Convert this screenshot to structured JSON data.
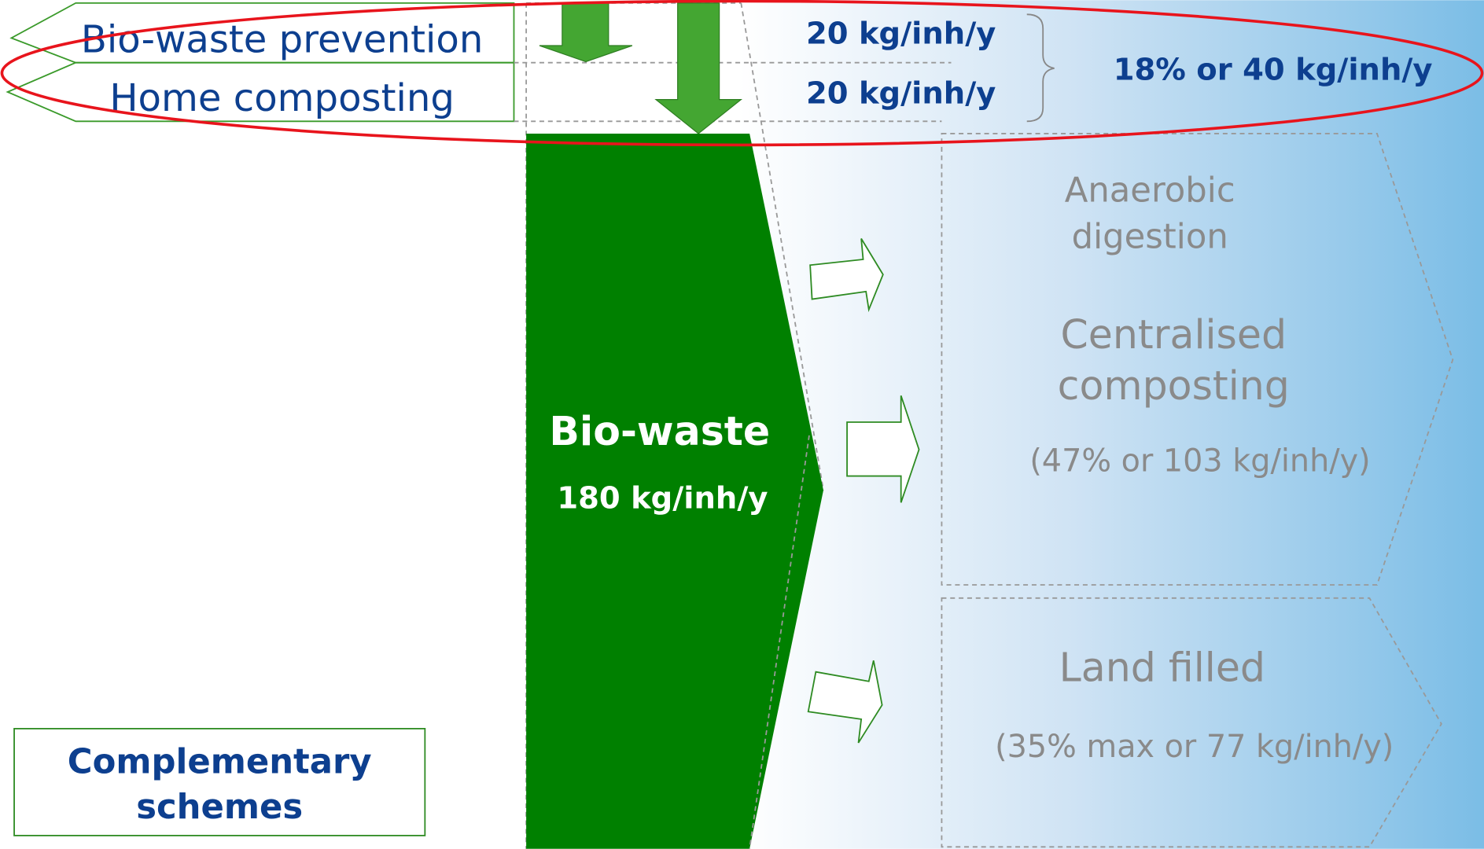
{
  "top": {
    "prevention": "Bio-waste prevention",
    "home_composting": "Home composting",
    "prevention_amount": "20 kg/inh/y",
    "home_amount": "20 kg/inh/y",
    "total": "18% or 40 kg/inh/y"
  },
  "center": {
    "label": "Bio-waste",
    "amount": "180 kg/inh/y"
  },
  "outputs": {
    "anaerobic": [
      "Anaerobic",
      "digestion"
    ],
    "composting": [
      "Centralised",
      "composting"
    ],
    "composting_share": "(47% or 103 kg/inh/y)",
    "landfill": "Land filled",
    "landfill_share": "(35% max or 77 kg/inh/y)"
  },
  "complementary": [
    "Complementary",
    "schemes"
  ]
}
